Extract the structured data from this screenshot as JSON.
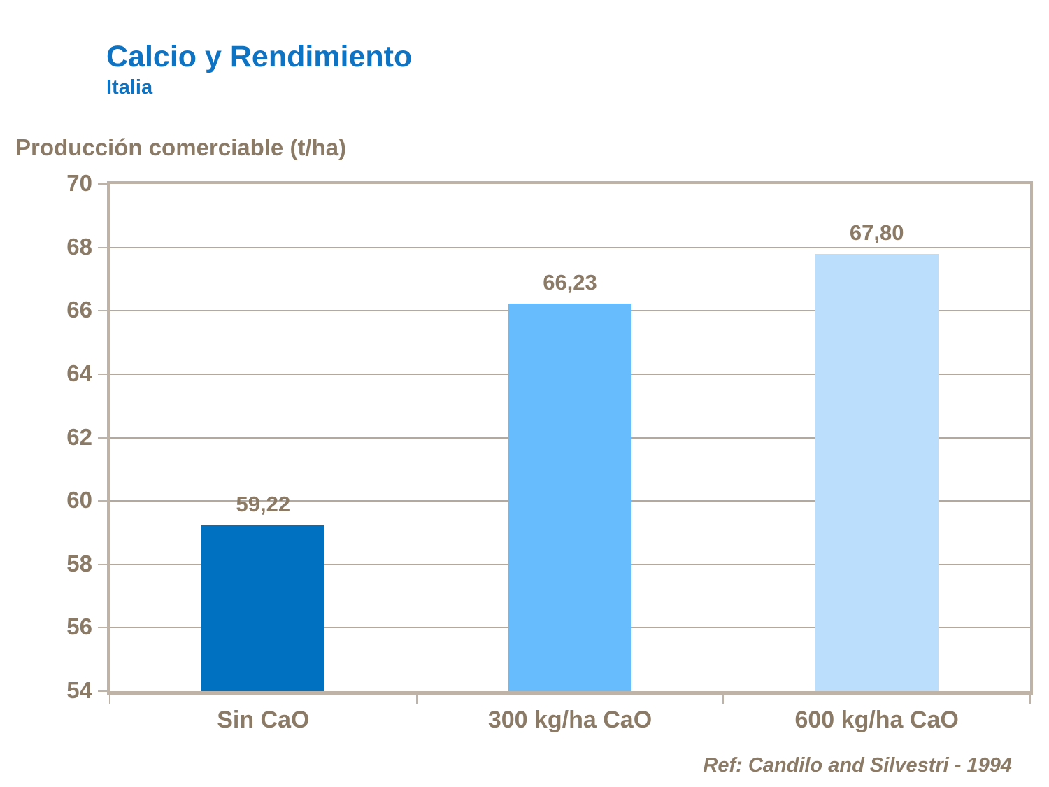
{
  "header": {
    "title": "Calcio y Rendimiento",
    "subtitle": "Italia"
  },
  "footer": {
    "ref": "Ref: Candilo and Silvestri - 1994"
  },
  "theme": {
    "title_blue": "#0e73c2",
    "text_brown": "#8b7a66",
    "axis_tan": "#bfb2a6",
    "gridline": "#b3a99d",
    "background": "#ffffff"
  },
  "chart_data": {
    "type": "bar",
    "title": "Calcio y Rendimiento",
    "subtitle": "Italia",
    "ylabel": "Producción comerciable (t/ha)",
    "xlabel": "",
    "categories": [
      "Sin CaO",
      "300 kg/ha CaO",
      "600 kg/ha CaO"
    ],
    "values": [
      59.22,
      66.23,
      67.8
    ],
    "value_labels": [
      "59,22",
      "66,23",
      "67,80"
    ],
    "bar_colors": [
      "#0070c1",
      "#67bcfd",
      "#badefc"
    ],
    "ylim": [
      54,
      70
    ],
    "yticks": [
      54,
      56,
      58,
      60,
      62,
      64,
      66,
      68,
      70
    ],
    "ytick_labels": [
      "54",
      "56",
      "58",
      "60",
      "62",
      "64",
      "66",
      "68",
      "70"
    ],
    "grid": true,
    "legend_position": "none",
    "annotation": "Ref: Candilo and Silvestri - 1994"
  }
}
